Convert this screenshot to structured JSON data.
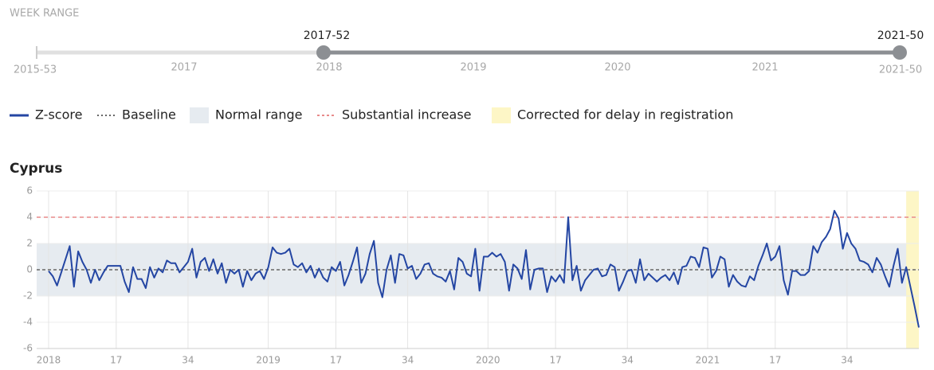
{
  "week_range": {
    "label": "WEEK RANGE",
    "min": "2015-53",
    "max": "2021-50",
    "start": "2017-52",
    "end": "2021-50",
    "ticks": [
      "2017",
      "2018",
      "2019",
      "2020",
      "2021"
    ]
  },
  "chart_data": {
    "type": "line",
    "title": "Cyprus",
    "series": [
      {
        "name": "Z-score",
        "color": "#2446a3",
        "values": [
          -0.1,
          -0.5,
          -1.2,
          -0.2,
          0.8,
          1.8,
          -1.3,
          1.4,
          0.6,
          0,
          -1,
          0,
          -0.8,
          -0.2,
          0.3,
          0.3,
          0.3,
          0.3,
          -0.9,
          -1.7,
          0.2,
          -0.7,
          -0.7,
          -1.4,
          0.2,
          -0.6,
          0.1,
          -0.2,
          0.7,
          0.5,
          0.5,
          -0.2,
          0.2,
          0.6,
          1.6,
          -0.6,
          0.6,
          0.9,
          -0.1,
          0.8,
          -0.3,
          0.5,
          -1,
          0,
          -0.3,
          0,
          -1.3,
          -0.1,
          -0.8,
          -0.3,
          -0.1,
          -0.7,
          0.2,
          1.7,
          1.3,
          1.2,
          1.3,
          1.6,
          0.4,
          0.2,
          0.5,
          -0.2,
          0.3,
          -0.6,
          0.1,
          -0.6,
          -0.9,
          0.2,
          -0.1,
          0.6,
          -1.2,
          -0.4,
          0.6,
          1.7,
          -1,
          -0.3,
          1.2,
          2.2,
          -1,
          -2.1,
          0,
          1.1,
          -1,
          1.2,
          1.1,
          0.1,
          0.3,
          -0.7,
          -0.3,
          0.4,
          0.5,
          -0.3,
          -0.5,
          -0.6,
          -0.9,
          -0.1,
          -1.5,
          0.9,
          0.6,
          -0.3,
          -0.5,
          1.6,
          -1.6,
          1,
          1,
          1.3,
          1,
          1.2,
          0.6,
          -1.6,
          0.4,
          0.1,
          -0.7,
          1.5,
          -1.5,
          0,
          0.1,
          0.1,
          -1.7,
          -0.5,
          -0.9,
          -0.4,
          -1,
          4,
          -0.8,
          0.3,
          -1.6,
          -0.8,
          -0.4,
          0,
          0.1,
          -0.5,
          -0.4,
          0.4,
          0.2,
          -1.6,
          -0.9,
          -0.1,
          0,
          -1,
          0.8,
          -0.8,
          -0.3,
          -0.6,
          -0.9,
          -0.6,
          -0.4,
          -0.8,
          -0.2,
          -1.1,
          0.2,
          0.3,
          1,
          0.9,
          0.2,
          1.7,
          1.6,
          -0.6,
          -0.1,
          1,
          0.8,
          -1.3,
          -0.4,
          -0.9,
          -1.2,
          -1.3,
          -0.5,
          -0.8,
          0.3,
          1.1,
          2,
          0.7,
          1,
          1.8,
          -0.8,
          -1.9,
          -0.1,
          -0.1,
          -0.4,
          -0.4,
          -0.1,
          1.8,
          1.3,
          2.1,
          2.5,
          3.1,
          4.5,
          3.9,
          1.6,
          2.8,
          2,
          1.6,
          0.7,
          0.6,
          0.4,
          -0.2,
          0.9,
          0.4,
          -0.5,
          -1.3,
          0.3,
          1.6,
          -1,
          0.2,
          -1.3,
          -2.8,
          -4.4
        ]
      }
    ],
    "baseline": {
      "name": "Baseline",
      "value": 0,
      "color": "#666666"
    },
    "normal_range": {
      "name": "Normal range",
      "range": [
        -2,
        2
      ],
      "color": "#e6ebf0"
    },
    "substantial_increase": {
      "name": "Substantial increase",
      "value": 4,
      "color": "#e88a8a"
    },
    "corrected": {
      "name": "Corrected for delay in registration",
      "xrange": [
        203,
        206
      ],
      "color": "#fdf6c6"
    },
    "xlim": [
      0,
      206
    ],
    "xticks": [
      {
        "value": 0,
        "label": "2018"
      },
      {
        "value": 16,
        "label": "17"
      },
      {
        "value": 33,
        "label": "34"
      },
      {
        "value": 52,
        "label": "2019"
      },
      {
        "value": 68,
        "label": "17"
      },
      {
        "value": 85,
        "label": "34"
      },
      {
        "value": 104,
        "label": "2020"
      },
      {
        "value": 120,
        "label": "17"
      },
      {
        "value": 137,
        "label": "34"
      },
      {
        "value": 156,
        "label": "2021"
      },
      {
        "value": 172,
        "label": "17"
      },
      {
        "value": 189,
        "label": "34"
      }
    ],
    "ylim": [
      -6,
      6
    ],
    "yticks": [
      -6,
      -4,
      -2,
      0,
      2,
      4,
      6
    ],
    "grid": true
  }
}
